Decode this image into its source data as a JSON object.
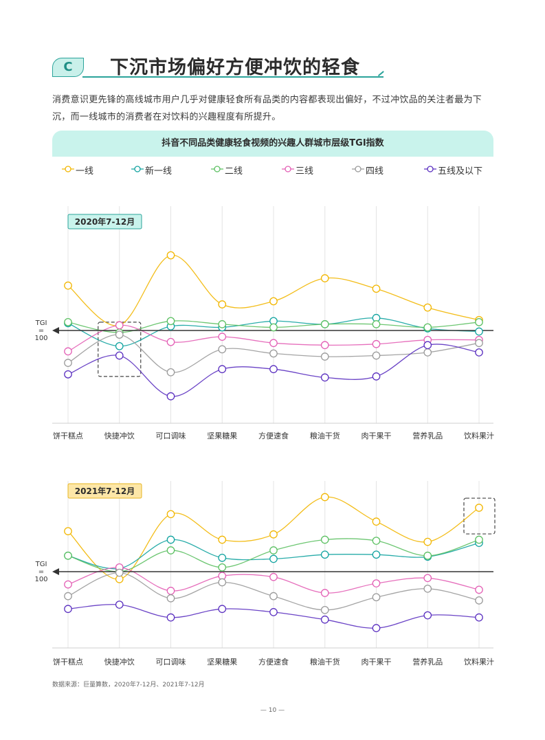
{
  "section": {
    "badge": "C",
    "title": "下沉市场偏好方便冲饮的轻食"
  },
  "intro": "消费意识更先锋的高线城市用户几乎对健康轻食所有品类的内容都表现出偏好，不过冲饮品的关注者最为下沉，而一线城市的消费者在对饮料的兴趣程度有所提升。",
  "chart_title": "抖音不同品类健康轻食视频的兴趣人群城市层级TGI指数",
  "legend": [
    {
      "name": "一线",
      "color": "#f2b600"
    },
    {
      "name": "新一线",
      "color": "#11a3a0"
    },
    {
      "name": "二线",
      "color": "#5cc062"
    },
    {
      "name": "三线",
      "color": "#e35fb5"
    },
    {
      "name": "四线",
      "color": "#9a9a9a"
    },
    {
      "name": "五线及以下",
      "color": "#5a2fc0"
    }
  ],
  "baseline_label": [
    "TGI",
    "=",
    "100"
  ],
  "source": "数据来源：巨量算数，2020年7-12月、2021年7-12月",
  "page_number": "— 10 —",
  "chart_data": [
    {
      "type": "line",
      "period_label": "2020年7-12月",
      "categories": [
        "饼干糕点",
        "快捷冲饮",
        "可口调味",
        "坚果糖果",
        "方便速食",
        "粮油干货",
        "肉干果干",
        "营养乳品",
        "饮料果汁"
      ],
      "baseline": 100,
      "ylim": [
        35,
        180
      ],
      "highlight_category": "快捷冲饮",
      "series": [
        {
          "name": "一线",
          "values": [
            143,
            105,
            172,
            125,
            128,
            150,
            140,
            122,
            110
          ]
        },
        {
          "name": "新一线",
          "values": [
            107,
            85,
            104,
            103,
            109,
            106,
            112,
            102,
            99
          ]
        },
        {
          "name": "二线",
          "values": [
            108,
            98,
            109,
            106,
            103,
            106,
            106,
            103,
            108
          ]
        },
        {
          "name": "三线",
          "values": [
            80,
            105,
            89,
            94,
            88,
            86,
            87,
            91,
            91
          ]
        },
        {
          "name": "四线",
          "values": [
            69,
            96,
            60,
            82,
            78,
            75,
            76,
            79,
            88
          ]
        },
        {
          "name": "五线及以下",
          "values": [
            58,
            76,
            37,
            63,
            63,
            55,
            56,
            86,
            79
          ]
        }
      ]
    },
    {
      "type": "line",
      "period_label": "2021年7-12月",
      "categories": [
        "饼干糕点",
        "快捷冲饮",
        "可口调味",
        "坚果糖果",
        "方便速食",
        "粮油干货",
        "肉干果干",
        "营养乳品",
        "饮料果汁"
      ],
      "baseline": 100,
      "ylim": [
        50,
        180
      ],
      "highlight_category": "饮料果汁",
      "series": [
        {
          "name": "一线",
          "values": [
            138,
            93,
            154,
            130,
            135,
            170,
            147,
            128,
            160
          ]
        },
        {
          "name": "新一线",
          "values": [
            115,
            103,
            130,
            113,
            112,
            116,
            116,
            114,
            127
          ]
        },
        {
          "name": "二线",
          "values": [
            115,
            100,
            120,
            104,
            120,
            130,
            129,
            115,
            130
          ]
        },
        {
          "name": "三线",
          "values": [
            88,
            104,
            82,
            96,
            95,
            80,
            89,
            94,
            83
          ]
        },
        {
          "name": "四线",
          "values": [
            77,
            99,
            75,
            90,
            77,
            64,
            76,
            84,
            73
          ]
        },
        {
          "name": "五线及以下",
          "values": [
            65,
            69,
            57,
            65,
            62,
            55,
            47,
            59,
            57
          ]
        }
      ]
    }
  ]
}
